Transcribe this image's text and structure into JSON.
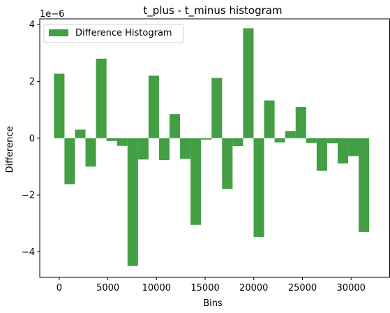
{
  "chart_data": {
    "type": "bar",
    "title": "t_plus - t_minus histogram",
    "xlabel": "Bins",
    "ylabel": "Difference",
    "y_offset_text": "1e−6",
    "xlim": [
      -2000,
      34000
    ],
    "ylim": [
      -4.9,
      4.2
    ],
    "x_ticks": [
      0,
      5000,
      10000,
      15000,
      20000,
      25000,
      30000
    ],
    "x_tick_labels": [
      "0",
      "5000",
      "10000",
      "15000",
      "20000",
      "25000",
      "30000"
    ],
    "y_ticks": [
      -4,
      -2,
      0,
      2,
      4
    ],
    "y_tick_labels": [
      "−4",
      "−2",
      "0",
      "2",
      "4"
    ],
    "bin_width": 1080,
    "grid": false,
    "legend_position": "top-left",
    "series": [
      {
        "name": "Difference Histogram",
        "color": "#439e44",
        "x": [
          0,
          1080,
          2160,
          3240,
          4320,
          5400,
          6480,
          7560,
          8640,
          9720,
          10800,
          11880,
          12960,
          14040,
          15120,
          16200,
          17280,
          18360,
          19440,
          20520,
          21600,
          22680,
          23760,
          24840,
          25920,
          27000,
          28080,
          29160,
          30240,
          31320
        ],
        "values": [
          2.27,
          -1.62,
          0.3,
          -1.0,
          2.8,
          -0.1,
          -0.27,
          -4.5,
          -0.75,
          2.2,
          -0.77,
          0.85,
          -0.73,
          -3.05,
          -0.05,
          2.12,
          -1.79,
          -0.28,
          3.87,
          -3.48,
          1.33,
          -0.15,
          0.25,
          1.1,
          -0.17,
          -1.15,
          -0.18,
          -0.89,
          -0.63,
          -3.3
        ]
      }
    ]
  }
}
